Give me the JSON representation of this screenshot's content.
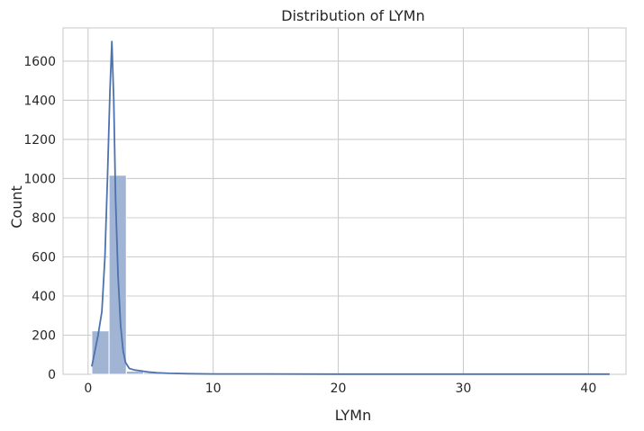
{
  "chart_data": {
    "type": "bar",
    "title": "Distribution of LYMn",
    "xlabel": "LYMn",
    "ylabel": "Count",
    "xlim": [
      -2.0,
      43.0
    ],
    "ylim": [
      0,
      1770
    ],
    "xticks": [
      0,
      10,
      20,
      30,
      40
    ],
    "yticks": [
      0,
      200,
      400,
      600,
      800,
      1000,
      1200,
      1400,
      1600
    ],
    "grid": true,
    "bin_width": 1.38,
    "bins": [
      {
        "start": 0.3,
        "count": 222
      },
      {
        "start": 1.68,
        "count": 1017
      },
      {
        "start": 3.06,
        "count": 16
      },
      {
        "start": 4.44,
        "count": 9
      },
      {
        "start": 5.82,
        "count": 4
      },
      {
        "start": 7.2,
        "count": 2
      },
      {
        "start": 8.58,
        "count": 1
      },
      {
        "start": 9.96,
        "count": 1
      },
      {
        "start": 11.34,
        "count": 1
      },
      {
        "start": 12.72,
        "count": 0
      },
      {
        "start": 14.1,
        "count": 3
      },
      {
        "start": 15.48,
        "count": 0
      },
      {
        "start": 16.86,
        "count": 0
      },
      {
        "start": 18.24,
        "count": 0
      },
      {
        "start": 19.62,
        "count": 0
      },
      {
        "start": 21.0,
        "count": 1
      },
      {
        "start": 22.38,
        "count": 0
      },
      {
        "start": 23.76,
        "count": 0
      },
      {
        "start": 25.14,
        "count": 0
      },
      {
        "start": 26.52,
        "count": 0
      },
      {
        "start": 27.9,
        "count": 0
      },
      {
        "start": 29.28,
        "count": 0
      },
      {
        "start": 30.66,
        "count": 0
      },
      {
        "start": 32.04,
        "count": 0
      },
      {
        "start": 33.42,
        "count": 0
      },
      {
        "start": 34.8,
        "count": 0
      },
      {
        "start": 36.18,
        "count": 0
      },
      {
        "start": 37.56,
        "count": 0
      },
      {
        "start": 38.94,
        "count": 0
      },
      {
        "start": 40.32,
        "count": 1
      }
    ],
    "kde": {
      "x": [
        0.3,
        0.8,
        1.1,
        1.35,
        1.55,
        1.75,
        1.9,
        2.05,
        2.2,
        2.4,
        2.6,
        2.8,
        3.0,
        3.3,
        3.7,
        4.2,
        4.8,
        5.5,
        6.5,
        8.0,
        10.0,
        14.0,
        20.0,
        30.0,
        41.7
      ],
      "y": [
        40,
        200,
        320,
        600,
        1000,
        1450,
        1700,
        1400,
        900,
        500,
        250,
        120,
        60,
        30,
        22,
        18,
        12,
        8,
        5,
        3,
        2,
        2,
        1,
        1,
        1
      ]
    },
    "colors": {
      "bar_fill": "#a2b4d4",
      "bar_stroke": "#ffffff",
      "line": "#4c72b0",
      "grid": "#cccccc",
      "text": "#262626"
    }
  }
}
